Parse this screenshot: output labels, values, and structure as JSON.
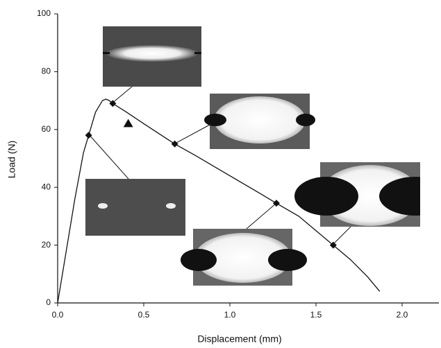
{
  "chart_data": {
    "type": "line",
    "xlabel": "Displacement (mm)",
    "ylabel": "Load (N)",
    "xlim": [
      0,
      2.2
    ],
    "ylim": [
      0,
      100
    ],
    "xticks": [
      {
        "value": 0,
        "label": "0.0"
      },
      {
        "value": 0.5,
        "label": "0.5"
      },
      {
        "value": 1,
        "label": "1.0"
      },
      {
        "value": 1.5,
        "label": "1.5"
      },
      {
        "value": 2,
        "label": "2.0"
      }
    ],
    "yticks": [
      0,
      20,
      40,
      60,
      80,
      100
    ],
    "series": [
      {
        "color": "#111111",
        "marker": "none",
        "x": [
          0,
          0.05,
          0.1,
          0.15,
          0.18,
          0.22,
          0.26,
          0.28,
          0.3,
          0.32,
          0.4,
          0.5,
          0.68,
          0.8,
          1.0,
          1.2,
          1.27,
          1.4,
          1.6,
          1.7,
          1.8,
          1.87
        ],
        "values": [
          0,
          18,
          36,
          52,
          58,
          66,
          70,
          70.5,
          70,
          69,
          66,
          62,
          55,
          51,
          44,
          37,
          34.5,
          30,
          20,
          15,
          9,
          4
        ]
      },
      {
        "color": "#111111",
        "marker": "diamond",
        "x": [
          0.18,
          0.32,
          0.68,
          1.27,
          1.6
        ],
        "values": [
          58,
          69,
          55,
          34.5,
          20
        ]
      },
      {
        "color": "#111111",
        "marker": "triangle",
        "x": [
          0.41
        ],
        "values": [
          62
        ]
      }
    ]
  }
}
